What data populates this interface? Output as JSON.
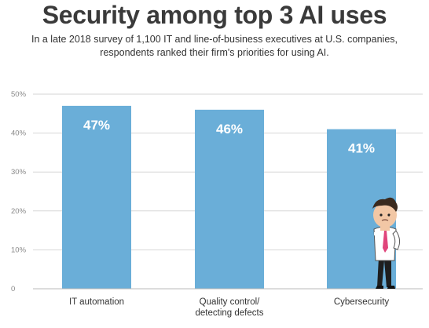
{
  "title": "Security among top 3 AI uses",
  "subtitle_lines": [
    "In a late 2018 survey of 1,100 IT and line-of-business executives at U.S. companies,",
    "respondents ranked their firm's priorities for using AI."
  ],
  "colors": {
    "bar": "#6aaed8",
    "grid": "#d6d6d6",
    "baseline": "#b8b8b8",
    "title": "#3a3a3a"
  },
  "illustration": {
    "name": "thinking-man-figure"
  },
  "chart_data": {
    "type": "bar",
    "categories": [
      "IT automation",
      "Quality control/ detecting defects",
      "Cybersecurity"
    ],
    "category_lines": [
      [
        "IT automation"
      ],
      [
        "Quality control/",
        "detecting defects"
      ],
      [
        "Cybersecurity"
      ]
    ],
    "values": [
      47,
      46,
      41
    ],
    "data_labels": [
      "47%",
      "46%",
      "41%"
    ],
    "yticks": [
      0,
      10,
      20,
      30,
      40,
      50
    ],
    "ytick_labels": [
      "0",
      "10%",
      "20%",
      "30%",
      "40%",
      "50%"
    ],
    "ylim": [
      0,
      50
    ],
    "grid": true,
    "xlabel": "",
    "ylabel": ""
  }
}
